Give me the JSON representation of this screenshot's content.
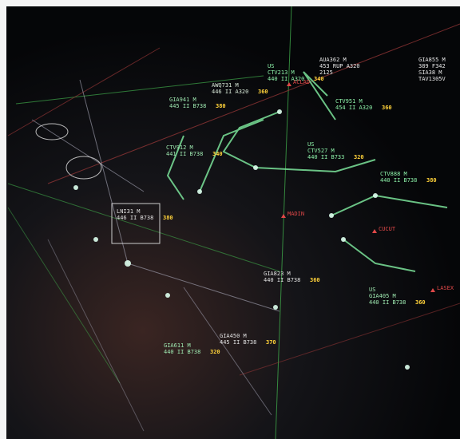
{
  "flights": [
    {
      "lines": [
        "AUA362 M",
        "453 RUP A320",
        "2125"
      ],
      "level": null
    },
    {
      "lines": [
        "GIA855 M",
        "389 F342",
        "SIA38 M",
        "TAV1305V"
      ],
      "level": null
    },
    {
      "lines": [
        "US",
        "CTV213 M",
        "440 II A320"
      ],
      "level": "340"
    },
    {
      "lines": [
        "CTV951 M",
        "454 II A320"
      ],
      "level": "360"
    },
    {
      "lines": [
        "US",
        "CTV527 M",
        "440 II B733"
      ],
      "level": "320"
    },
    {
      "lines": [
        "CTV888 M",
        "440 II B738"
      ],
      "level": "380"
    },
    {
      "lines": [
        "GIA941 M",
        "445 II B738"
      ],
      "level": "380"
    },
    {
      "lines": [
        "AWQ731 M",
        "446 II A320"
      ],
      "level": "360"
    },
    {
      "lines": [
        "CTV912 M",
        "441 II B738"
      ],
      "level": "340"
    },
    {
      "lines": [
        "LNI31 M",
        "446 II B738"
      ],
      "level": "380"
    },
    {
      "lines": [
        "GIA823 M",
        "440 II B738"
      ],
      "level": "360"
    },
    {
      "lines": [
        "US",
        "GIA405 M",
        "440 II B738"
      ],
      "level": "360"
    },
    {
      "lines": [
        "GIA611 M",
        "440 II B738"
      ],
      "level": "320"
    },
    {
      "lines": [
        "GIA450 M",
        "445 II B738"
      ],
      "level": "370"
    }
  ],
  "fixes": [
    "ACLAD",
    "MADIN",
    "CUCUT",
    "LASEX"
  ]
}
